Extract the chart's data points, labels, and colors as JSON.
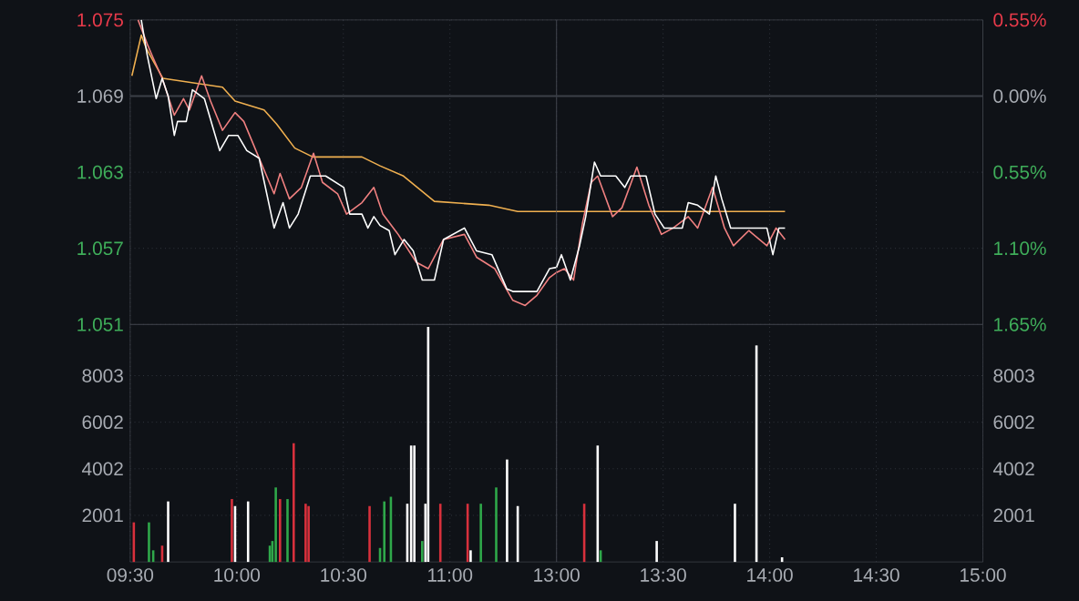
{
  "chart_data": [
    {
      "type": "line",
      "xlim": [
        9.5,
        11.5
      ],
      "ylim": [
        1.051,
        1.075
      ],
      "yticks": [
        1.051,
        1.057,
        1.063,
        1.069,
        1.075
      ],
      "xticks": [
        9.5,
        10,
        10.5,
        11
      ],
      "tick_labels": "y",
      "grid": true,
      "ref_lines": [
        {
          "axis": "y",
          "value": 1.069,
          "color": "#3c4048"
        }
      ],
      "series": [
        {
          "color": "#f0b050",
          "x": [
            9.508,
            9.552,
            9.577,
            9.637,
            9.653,
            9.933,
            9.992,
            10.128,
            10.187,
            10.272,
            10.357,
            10.587,
            10.672,
            10.782,
            10.927,
            11.182,
            11.318,
            11.5
          ],
          "values": [
            1.0706,
            1.0738,
            1.0727,
            1.0709,
            1.0704,
            1.0697,
            1.0686,
            1.0679,
            1.0668,
            1.0649,
            1.0642,
            1.0642,
            1.0635,
            1.0627,
            1.0607,
            1.0604,
            1.0599,
            1.0599
          ]
        },
        {
          "color": "#f08080",
          "x": [
            9.537,
            9.58,
            9.608,
            9.65,
            9.707,
            9.75,
            9.778,
            9.835,
            9.877,
            9.933,
            9.992,
            10.033,
            10.09,
            10.175,
            10.203,
            10.247,
            10.303,
            10.36,
            10.402,
            10.473,
            10.515,
            10.587,
            10.643,
            10.685,
            10.757,
            10.842,
            10.898,
            10.97,
            11.068,
            11.125,
            11.21,
            11.295,
            11.353,
            11.408,
            11.467,
            11.5
          ],
          "values": [
            1.075,
            1.0731,
            1.072,
            1.0704,
            1.0675,
            1.0688,
            1.0679,
            1.0706,
            1.0686,
            1.0663,
            1.0677,
            1.067,
            1.0647,
            1.0613,
            1.0629,
            1.0609,
            1.0618,
            1.0645,
            1.0622,
            1.0613,
            1.0597,
            1.0606,
            1.0618,
            1.0597,
            1.0581,
            1.0559,
            1.0554,
            1.0577,
            1.0581,
            1.0563,
            1.0554,
            1.0529,
            1.0525,
            1.0533,
            1.0547,
            1.0551
          ]
        },
        {
          "color": "#ffffff",
          "x": [
            9.552,
            9.58,
            9.622,
            9.65,
            9.678,
            9.707,
            9.722,
            9.763,
            9.792,
            9.848,
            9.92,
            9.962,
            10.005,
            10.047,
            10.105,
            10.175,
            10.217,
            10.247,
            10.288,
            10.345,
            10.417,
            10.502,
            10.53,
            10.587,
            10.615,
            10.643,
            10.672,
            10.715,
            10.742,
            10.785,
            10.828,
            10.87,
            10.927,
            10.97,
            11.068,
            11.125,
            11.197,
            11.267,
            11.295,
            11.408,
            11.467,
            11.5
          ],
          "values": [
            1.075,
            1.0722,
            1.0688,
            1.0704,
            1.069,
            1.0659,
            1.067,
            1.067,
            1.0695,
            1.0688,
            1.0647,
            1.0659,
            1.0659,
            1.0647,
            1.0641,
            1.0586,
            1.0606,
            1.0586,
            1.0597,
            1.0627,
            1.0627,
            1.0618,
            1.0597,
            1.0597,
            1.0586,
            1.0595,
            1.0588,
            1.0584,
            1.0565,
            1.0577,
            1.0568,
            1.0545,
            1.0545,
            1.0577,
            1.0586,
            1.0568,
            1.0565,
            1.0538,
            1.0536,
            1.0536,
            1.0554,
            1.0555
          ]
        }
      ]
    },
    {
      "type": "line",
      "xlim": [
        13,
        15
      ],
      "ylim": [
        1.051,
        1.075
      ],
      "yticks": [
        1.051,
        1.057,
        1.063,
        1.069,
        1.075
      ],
      "y2lim": [
        -1.65,
        0.55
      ],
      "y2ticks": [
        {
          "value": -1.65,
          "label": "1.65%"
        },
        {
          "value": -1.1,
          "label": "1.10%"
        },
        {
          "value": -0.55,
          "label": "0.55%"
        },
        {
          "value": 0,
          "label": "0.00%"
        },
        {
          "value": 0.55,
          "label": "0.55%"
        }
      ],
      "xticks": [
        13,
        13.5,
        14,
        14.5,
        15
      ],
      "tick_labels": false,
      "grid": true,
      "ref_lines": [
        {
          "axis": "y",
          "value": 1.069,
          "color": "#3c4048"
        }
      ],
      "series": [
        {
          "color": "#f0b050",
          "x": [
            13.0,
            13.137,
            14.072
          ],
          "values": [
            1.0599,
            1.0599,
            1.0599
          ]
        },
        {
          "color": "#f08080",
          "x": [
            13.0,
            13.037,
            13.08,
            13.122,
            13.163,
            13.193,
            13.263,
            13.307,
            13.377,
            13.433,
            13.492,
            13.547,
            13.618,
            13.662,
            13.732,
            13.788,
            13.83,
            13.902,
            13.987,
            14.03,
            14.072
          ],
          "values": [
            1.0551,
            1.0554,
            1.0545,
            1.059,
            1.0622,
            1.0627,
            1.0595,
            1.0602,
            1.0634,
            1.0604,
            1.0581,
            1.0586,
            1.0595,
            1.0586,
            1.0618,
            1.0586,
            1.0572,
            1.0584,
            1.0572,
            1.0586,
            1.0577
          ]
        },
        {
          "color": "#ffffff",
          "x": [
            13.0,
            13.023,
            13.065,
            13.108,
            13.137,
            13.178,
            13.207,
            13.278,
            13.32,
            13.348,
            13.42,
            13.462,
            13.505,
            13.59,
            13.618,
            13.662,
            13.717,
            13.747,
            13.775,
            13.817,
            13.987,
            14.015,
            14.043,
            14.072
          ],
          "values": [
            1.0555,
            1.0565,
            1.0545,
            1.0572,
            1.0595,
            1.0638,
            1.0627,
            1.0627,
            1.0618,
            1.0627,
            1.0627,
            1.0597,
            1.0586,
            1.0586,
            1.0606,
            1.0604,
            1.0597,
            1.0627,
            1.0609,
            1.0586,
            1.0586,
            1.0565,
            1.0586,
            1.0586
          ]
        }
      ]
    },
    {
      "type": "bar",
      "xlim": [
        9.5,
        11.5
      ],
      "ylim": [
        0,
        10200
      ],
      "yticks": [
        2001,
        4002,
        6002,
        8003
      ],
      "xticks": [
        {
          "value": 9.5,
          "label": "09:30"
        },
        {
          "value": 10,
          "label": "10:00"
        },
        {
          "value": 10.5,
          "label": "10:30"
        },
        {
          "value": 11,
          "label": "11:00"
        }
      ],
      "grid": true,
      "series": [
        {
          "color": "#d8303c",
          "x": [
            9.517,
            9.65,
            9.977,
            10.203,
            10.267,
            10.323,
            10.337,
            10.623,
            10.955,
            11.083
          ],
          "values": [
            1700,
            700,
            2700,
            2700,
            5100,
            2500,
            2400,
            2400,
            2500,
            2500
          ]
        },
        {
          "color": "#2fa84a",
          "x": [
            9.588,
            9.608,
            10.155,
            10.167,
            10.183,
            10.238,
            10.672,
            10.692,
            10.723,
            10.87,
            11.145,
            11.217
          ],
          "values": [
            1700,
            500,
            700,
            900,
            3200,
            2700,
            600,
            2600,
            2800,
            900,
            2500,
            3200
          ]
        },
        {
          "color": "#ffffff",
          "x": [
            9.678,
            9.992,
            10.053,
            10.8,
            10.818,
            10.833,
            10.885,
            10.898,
            11.097,
            11.268,
            11.318
          ],
          "values": [
            2600,
            2400,
            2600,
            2500,
            5000,
            5000,
            2500,
            10100,
            500,
            4400,
            2400
          ]
        }
      ]
    },
    {
      "type": "bar",
      "xlim": [
        13,
        15
      ],
      "ylim": [
        0,
        10200
      ],
      "yticks": [
        2001,
        4002,
        6002,
        8003
      ],
      "xticks": [
        {
          "value": 13,
          "label": "13:00"
        },
        {
          "value": 13.5,
          "label": "13:30"
        },
        {
          "value": 14,
          "label": "14:00"
        },
        {
          "value": 14.5,
          "label": "14:30"
        },
        {
          "value": 15,
          "label": "15:00"
        }
      ],
      "grid": true,
      "series": [
        {
          "color": "#d8303c",
          "x": [
            13.13
          ],
          "values": [
            2500
          ]
        },
        {
          "color": "#2fa84a",
          "x": [
            13.207
          ],
          "values": [
            500
          ]
        },
        {
          "color": "#ffffff",
          "x": [
            13.193,
            13.47,
            13.837,
            13.938,
            14.058
          ],
          "values": [
            5000,
            900,
            2500,
            9300,
            200
          ]
        }
      ]
    }
  ]
}
